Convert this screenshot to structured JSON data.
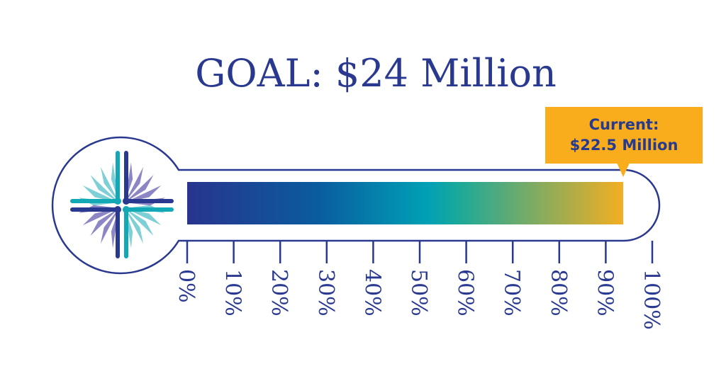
{
  "chart_data": {
    "type": "bar",
    "title": "GOAL: $24 Million",
    "goal": 24,
    "current": 22.5,
    "unit": "Million",
    "progress_percent": 93.75,
    "callout": {
      "line1": "Current:",
      "line2": "$22.5 Million"
    },
    "tick_labels": [
      "0%",
      "10%",
      "20%",
      "30%",
      "40%",
      "50%",
      "60%",
      "70%",
      "80%",
      "90%",
      "100%"
    ],
    "xlim": [
      0,
      100
    ]
  },
  "colors": {
    "outline": "#2a3990",
    "callout_bg": "#f9ad1c",
    "text": "#263a8f",
    "gradient": [
      "#28348f",
      "#0a5c9f",
      "#00a0b6",
      "#1aa99b",
      "#f3ae22"
    ],
    "logo_teal": "#12a8b5",
    "logo_navy": "#2a3990",
    "logo_light_teal": "#7fcfd6",
    "logo_lavender": "#8c86c4"
  }
}
